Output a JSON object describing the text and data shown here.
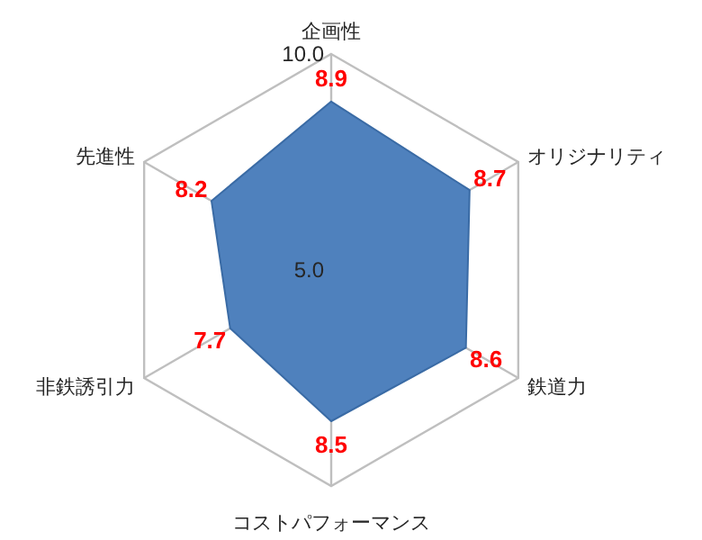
{
  "chart_data": {
    "type": "radar",
    "categories": [
      "企画性",
      "オリジナリティ",
      "鉄道力",
      "コストパフォーマンス",
      "非鉄誘引力",
      "先進性"
    ],
    "series": [
      {
        "color": "#4f81bd",
        "values": [
          8.9,
          8.7,
          8.6,
          8.5,
          7.7,
          8.2
        ]
      }
    ],
    "ylim": [
      5,
      10
    ],
    "yticks": [
      {
        "value": 5,
        "label": "5.0"
      },
      {
        "value": 10,
        "label": "10.0"
      }
    ],
    "grid": true,
    "data_labels": true
  }
}
